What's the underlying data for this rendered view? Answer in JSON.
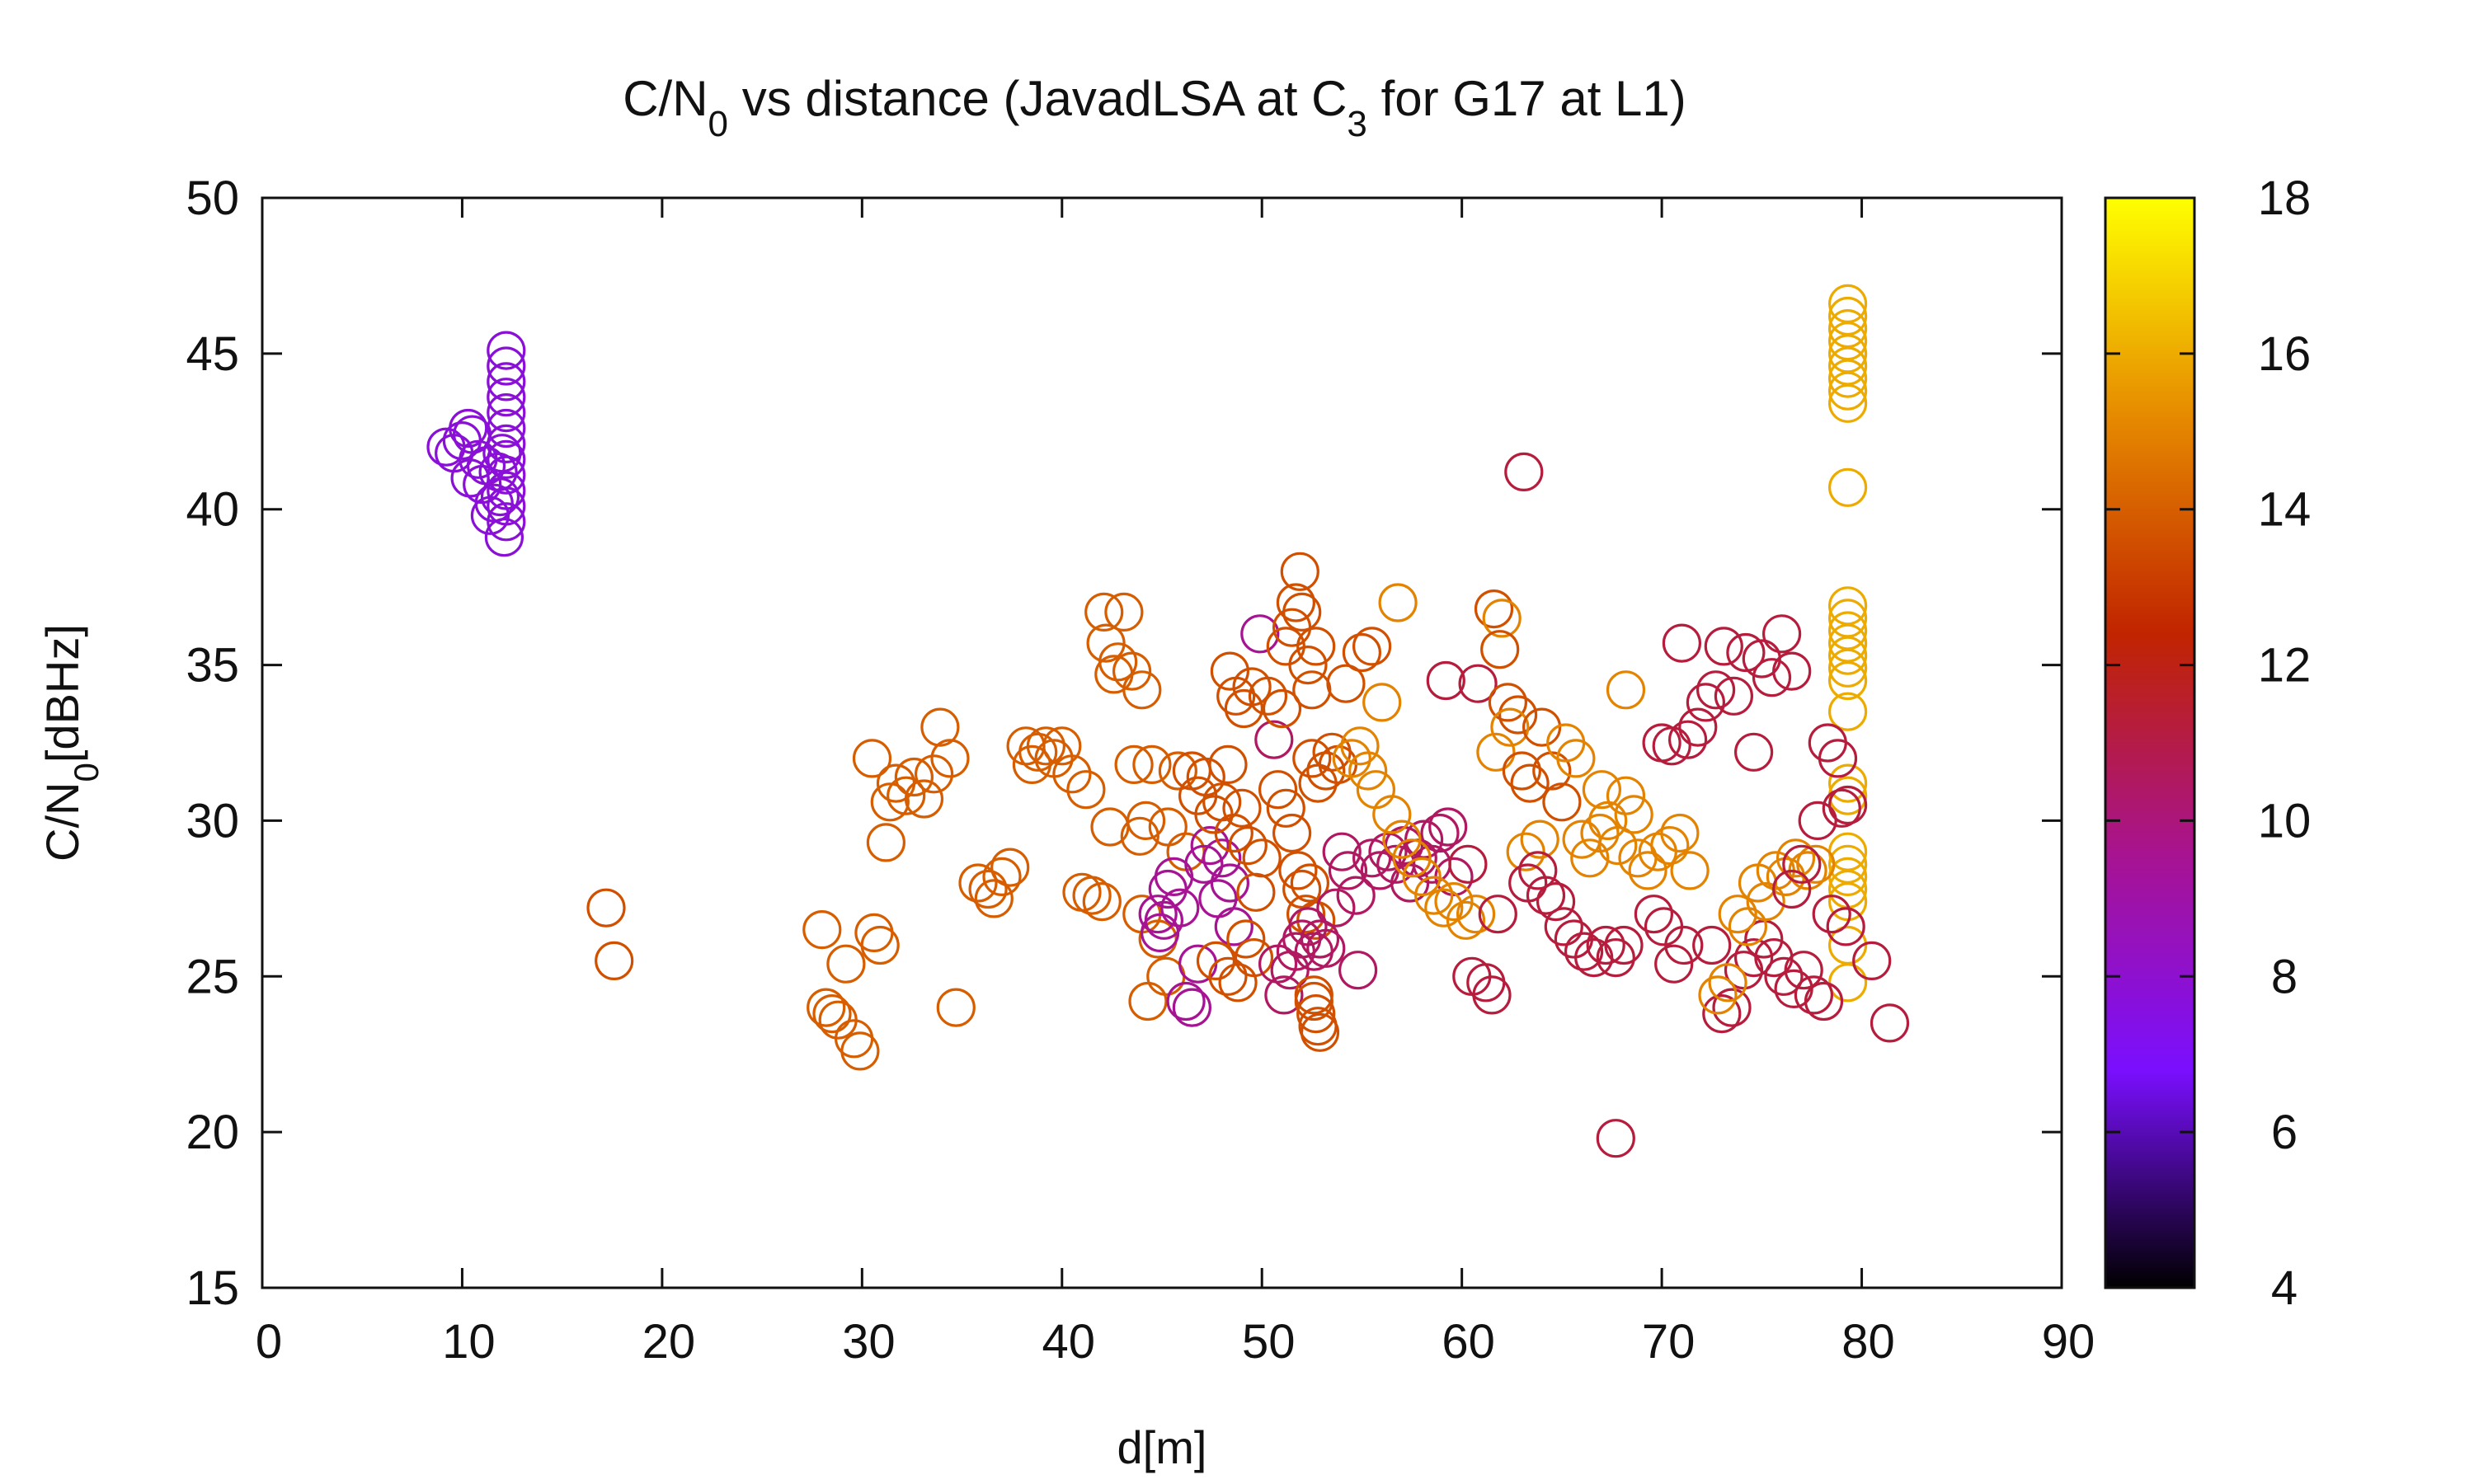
{
  "chart_data": {
    "type": "scatter",
    "title": {
      "base1": "C/N",
      "sub1": "0",
      "mid": " vs distance (JavadLSA at C",
      "sub2": "3",
      "tail": " for G17 at L1)"
    },
    "xlabel": "d[m]",
    "ylabel": {
      "base": "C/N",
      "sub": "0",
      "tail": "[dBHz]"
    },
    "xlim": [
      0,
      90
    ],
    "ylim": [
      15,
      50
    ],
    "xticks": [
      "0",
      "10",
      "20",
      "30",
      "40",
      "50",
      "60",
      "70",
      "80",
      "90"
    ],
    "yticks": [
      "15",
      "20",
      "25",
      "30",
      "35",
      "40",
      "45",
      "50"
    ],
    "colorbar": {
      "range": [
        4,
        18
      ],
      "ticks": [
        "4",
        "6",
        "8",
        "10",
        "12",
        "14",
        "16",
        "18"
      ],
      "palette": [
        "#000000",
        "#7a0fff",
        "#a8138f",
        "#c12400",
        "#e68a00",
        "#ffff00"
      ]
    },
    "marker": "open-circle",
    "points": [
      [
        9.2,
        42.0,
        7.8
      ],
      [
        9.6,
        41.8,
        7.8
      ],
      [
        10.0,
        42.2,
        7.8
      ],
      [
        10.3,
        42.6,
        7.8
      ],
      [
        10.5,
        42.4,
        7.8
      ],
      [
        10.8,
        41.6,
        7.8
      ],
      [
        10.4,
        41.0,
        7.8
      ],
      [
        11.0,
        40.8,
        7.8
      ],
      [
        11.2,
        41.4,
        7.8
      ],
      [
        11.6,
        40.2,
        7.8
      ],
      [
        11.4,
        39.8,
        7.8
      ],
      [
        11.8,
        41.2,
        7.8
      ],
      [
        12.2,
        45.1,
        7.8
      ],
      [
        12.2,
        44.6,
        7.8
      ],
      [
        12.2,
        44.1,
        7.8
      ],
      [
        12.2,
        43.6,
        7.8
      ],
      [
        12.2,
        43.1,
        7.8
      ],
      [
        12.2,
        42.6,
        7.8
      ],
      [
        12.2,
        42.1,
        7.8
      ],
      [
        12.2,
        41.6,
        7.8
      ],
      [
        12.2,
        41.1,
        7.8
      ],
      [
        12.2,
        40.6,
        7.8
      ],
      [
        12.2,
        40.1,
        7.8
      ],
      [
        12.2,
        39.6,
        7.8
      ],
      [
        12.1,
        39.1,
        7.8
      ],
      [
        11.9,
        40.4,
        7.8
      ],
      [
        12.0,
        41.8,
        7.8
      ],
      [
        79.3,
        46.6,
        16.0
      ],
      [
        79.3,
        46.2,
        16.0
      ],
      [
        79.3,
        45.8,
        16.0
      ],
      [
        79.3,
        45.4,
        16.0
      ],
      [
        79.3,
        45.0,
        16.0
      ],
      [
        79.3,
        44.6,
        16.0
      ],
      [
        79.3,
        44.2,
        16.0
      ],
      [
        79.3,
        43.8,
        16.0
      ],
      [
        79.3,
        43.4,
        16.0
      ],
      [
        79.3,
        40.7,
        16.0
      ],
      [
        79.3,
        36.9,
        16.0
      ],
      [
        79.3,
        36.5,
        16.0
      ],
      [
        79.3,
        36.1,
        16.0
      ],
      [
        79.3,
        35.7,
        16.0
      ],
      [
        79.3,
        35.3,
        16.0
      ],
      [
        79.3,
        34.9,
        16.0
      ],
      [
        79.3,
        34.5,
        16.0
      ],
      [
        79.3,
        33.5,
        16.0
      ],
      [
        79.3,
        31.2,
        16.0
      ],
      [
        79.3,
        30.8,
        16.0
      ],
      [
        79.3,
        29.0,
        16.0
      ],
      [
        79.3,
        28.6,
        16.0
      ],
      [
        79.3,
        28.2,
        16.0
      ],
      [
        79.3,
        27.8,
        16.0
      ],
      [
        79.3,
        27.4,
        16.0
      ],
      [
        79.3,
        26.0,
        16.0
      ],
      [
        79.3,
        24.8,
        16.0
      ],
      [
        79.3,
        30.5,
        11.2
      ],
      [
        79.2,
        26.6,
        11.2
      ],
      [
        17.2,
        27.2,
        13.6
      ],
      [
        17.6,
        25.5,
        13.6
      ],
      [
        28.0,
        26.5,
        14.0
      ],
      [
        28.2,
        24.0,
        14.0
      ],
      [
        28.5,
        23.8,
        14.0
      ],
      [
        28.8,
        23.6,
        14.0
      ],
      [
        29.2,
        25.4,
        14.0
      ],
      [
        29.6,
        23.0,
        14.0
      ],
      [
        29.9,
        22.6,
        14.0
      ],
      [
        30.5,
        32.0,
        14.0
      ],
      [
        30.6,
        26.4,
        14.0
      ],
      [
        30.9,
        26.0,
        14.0
      ],
      [
        31.2,
        29.3,
        14.0
      ],
      [
        31.4,
        30.6,
        14.0
      ],
      [
        31.7,
        31.2,
        14.0
      ],
      [
        32.2,
        30.8,
        14.0
      ],
      [
        32.6,
        31.4,
        14.0
      ],
      [
        33.1,
        30.7,
        14.0
      ],
      [
        33.6,
        31.5,
        14.0
      ],
      [
        33.9,
        33.0,
        14.0
      ],
      [
        34.4,
        32.0,
        14.0
      ],
      [
        34.7,
        24.0,
        14.0
      ],
      [
        35.8,
        28.0,
        14.0
      ],
      [
        36.3,
        27.8,
        14.0
      ],
      [
        36.6,
        27.5,
        14.0
      ],
      [
        37.0,
        28.2,
        14.0
      ],
      [
        37.4,
        28.5,
        14.0
      ],
      [
        38.2,
        32.4,
        14.0
      ],
      [
        38.5,
        31.8,
        14.0
      ],
      [
        38.8,
        32.2,
        14.0
      ],
      [
        39.2,
        32.4,
        14.0
      ],
      [
        39.6,
        32.0,
        14.0
      ],
      [
        40.0,
        32.4,
        14.0
      ],
      [
        40.5,
        31.5,
        14.0
      ],
      [
        41.2,
        31.0,
        14.0
      ],
      [
        41.0,
        27.7,
        14.0
      ],
      [
        41.5,
        27.6,
        14.0
      ],
      [
        42.0,
        27.4,
        14.0
      ],
      [
        42.1,
        36.7,
        14.0
      ],
      [
        42.2,
        35.7,
        14.0
      ],
      [
        42.6,
        34.7,
        14.0
      ],
      [
        42.8,
        35.1,
        14.0
      ],
      [
        43.1,
        36.7,
        14.0
      ],
      [
        43.5,
        34.8,
        14.0
      ],
      [
        44.0,
        34.2,
        14.0
      ],
      [
        42.4,
        29.8,
        14.0
      ],
      [
        43.6,
        31.8,
        14.0
      ],
      [
        43.9,
        29.5,
        14.0
      ],
      [
        44.2,
        30.0,
        14.0
      ],
      [
        44.5,
        31.8,
        14.0
      ],
      [
        44.0,
        27.0,
        14.0
      ],
      [
        44.3,
        24.2,
        14.0
      ],
      [
        44.8,
        26.2,
        14.0
      ],
      [
        45.2,
        25.0,
        14.0
      ],
      [
        45.3,
        29.8,
        14.0
      ],
      [
        45.8,
        31.6,
        14.0
      ],
      [
        46.2,
        29.0,
        14.0
      ],
      [
        44.8,
        27.0,
        9.5
      ],
      [
        44.9,
        26.4,
        9.5
      ],
      [
        45.1,
        26.8,
        9.5
      ],
      [
        45.3,
        27.8,
        9.5
      ],
      [
        45.6,
        28.2,
        9.5
      ],
      [
        45.9,
        27.2,
        9.5
      ],
      [
        46.2,
        24.2,
        9.5
      ],
      [
        46.5,
        24.0,
        9.5
      ],
      [
        46.8,
        25.4,
        9.5
      ],
      [
        47.1,
        28.6,
        9.5
      ],
      [
        47.4,
        29.2,
        9.5
      ],
      [
        47.8,
        27.5,
        9.5
      ],
      [
        48.0,
        28.8,
        9.5
      ],
      [
        48.4,
        28.0,
        9.5
      ],
      [
        48.6,
        26.6,
        9.5
      ],
      [
        46.5,
        31.6,
        13.6
      ],
      [
        46.8,
        30.8,
        13.6
      ],
      [
        47.2,
        31.4,
        13.6
      ],
      [
        47.6,
        30.2,
        13.6
      ],
      [
        48.0,
        30.6,
        13.6
      ],
      [
        48.3,
        31.8,
        13.6
      ],
      [
        48.6,
        29.6,
        13.6
      ],
      [
        49.0,
        30.4,
        13.6
      ],
      [
        49.3,
        29.2,
        13.6
      ],
      [
        49.7,
        27.7,
        13.6
      ],
      [
        50.0,
        28.8,
        13.6
      ],
      [
        47.7,
        25.5,
        13.6
      ],
      [
        48.3,
        25.0,
        13.6
      ],
      [
        48.8,
        24.8,
        13.6
      ],
      [
        49.2,
        26.2,
        13.6
      ],
      [
        49.6,
        25.6,
        13.6
      ],
      [
        48.4,
        34.8,
        13.6
      ],
      [
        48.7,
        34.0,
        13.6
      ],
      [
        49.1,
        33.6,
        13.6
      ],
      [
        49.5,
        34.3,
        13.6
      ],
      [
        49.9,
        36.0,
        9.5
      ],
      [
        50.3,
        34.0,
        13.6
      ],
      [
        50.6,
        32.6,
        10.5
      ],
      [
        51.0,
        33.6,
        13.6
      ],
      [
        50.8,
        31.0,
        13.6
      ],
      [
        51.2,
        30.4,
        13.6
      ],
      [
        51.5,
        29.6,
        13.6
      ],
      [
        51.8,
        28.4,
        13.6
      ],
      [
        52.0,
        27.8,
        13.6
      ],
      [
        52.2,
        27.0,
        13.6
      ],
      [
        52.4,
        28.0,
        13.6
      ],
      [
        52.7,
        26.8,
        13.6
      ],
      [
        50.8,
        25.4,
        10.5
      ],
      [
        51.1,
        24.4,
        10.5
      ],
      [
        51.4,
        25.2,
        10.5
      ],
      [
        51.7,
        25.8,
        10.5
      ],
      [
        52.0,
        26.2,
        10.5
      ],
      [
        52.3,
        26.6,
        10.5
      ],
      [
        52.6,
        25.8,
        10.5
      ],
      [
        52.9,
        26.2,
        10.5
      ],
      [
        53.2,
        25.9,
        10.5
      ],
      [
        51.2,
        35.6,
        13.6
      ],
      [
        51.5,
        36.2,
        13.6
      ],
      [
        51.7,
        37.0,
        13.6
      ],
      [
        51.9,
        38.0,
        13.6
      ],
      [
        52.0,
        36.7,
        13.6
      ],
      [
        52.3,
        35.0,
        13.6
      ],
      [
        52.5,
        34.2,
        13.6
      ],
      [
        52.7,
        35.6,
        13.6
      ],
      [
        52.5,
        32.0,
        13.6
      ],
      [
        52.8,
        31.2,
        13.6
      ],
      [
        53.2,
        31.6,
        13.6
      ],
      [
        53.5,
        32.2,
        13.6
      ],
      [
        53.8,
        31.8,
        13.6
      ],
      [
        54.2,
        34.4,
        13.6
      ],
      [
        54.5,
        32.0,
        15.0
      ],
      [
        54.9,
        32.4,
        15.0
      ],
      [
        55.3,
        31.6,
        15.0
      ],
      [
        55.7,
        31.0,
        15.0
      ],
      [
        52.6,
        24.2,
        13.6
      ],
      [
        52.7,
        23.8,
        13.6
      ],
      [
        52.8,
        23.4,
        13.6
      ],
      [
        52.9,
        23.2,
        13.6
      ],
      [
        52.6,
        24.4,
        13.6
      ],
      [
        54.0,
        29.0,
        10.5
      ],
      [
        54.3,
        28.4,
        10.5
      ],
      [
        54.7,
        27.6,
        10.5
      ],
      [
        53.7,
        27.2,
        10.5
      ],
      [
        54.8,
        25.2,
        10.5
      ],
      [
        55.0,
        35.4,
        13.6
      ],
      [
        55.5,
        35.6,
        13.6
      ],
      [
        55.5,
        28.8,
        10.5
      ],
      [
        55.9,
        28.4,
        10.5
      ],
      [
        56.3,
        29.0,
        10.5
      ],
      [
        56.7,
        28.6,
        10.5
      ],
      [
        57.1,
        29.2,
        10.5
      ],
      [
        57.4,
        28.0,
        10.5
      ],
      [
        57.8,
        28.8,
        10.5
      ],
      [
        58.1,
        29.4,
        10.5
      ],
      [
        58.5,
        28.6,
        10.5
      ],
      [
        58.9,
        29.6,
        10.5
      ],
      [
        59.3,
        29.8,
        10.5
      ],
      [
        59.6,
        28.2,
        10.5
      ],
      [
        56.0,
        33.8,
        15.0
      ],
      [
        56.8,
        37.0,
        15.0
      ],
      [
        56.5,
        30.2,
        15.0
      ],
      [
        57.0,
        29.4,
        15.0
      ],
      [
        57.5,
        28.8,
        15.0
      ],
      [
        58.0,
        28.2,
        15.0
      ],
      [
        58.6,
        27.6,
        15.0
      ],
      [
        59.1,
        27.2,
        15.0
      ],
      [
        59.6,
        27.4,
        15.0
      ],
      [
        60.2,
        26.8,
        15.0
      ],
      [
        60.7,
        27.0,
        15.0
      ],
      [
        59.2,
        34.5,
        11.2
      ],
      [
        60.8,
        34.4,
        11.2
      ],
      [
        60.3,
        28.6,
        11.2
      ],
      [
        60.5,
        25.0,
        11.2
      ],
      [
        61.2,
        24.8,
        11.2
      ],
      [
        61.5,
        24.4,
        11.2
      ],
      [
        61.8,
        27.0,
        11.2
      ],
      [
        61.6,
        36.8,
        13.6
      ],
      [
        62.0,
        36.5,
        15.0
      ],
      [
        61.9,
        35.5,
        13.6
      ],
      [
        62.3,
        33.8,
        13.6
      ],
      [
        62.8,
        33.4,
        13.6
      ],
      [
        61.7,
        32.2,
        15.0
      ],
      [
        62.4,
        33.0,
        15.0
      ],
      [
        63.0,
        31.6,
        13.6
      ],
      [
        63.4,
        31.2,
        13.6
      ],
      [
        63.2,
        29.0,
        15.0
      ],
      [
        63.9,
        29.4,
        15.0
      ],
      [
        63.1,
        41.2,
        11.2
      ],
      [
        63.3,
        28.0,
        11.2
      ],
      [
        63.8,
        28.4,
        11.2
      ],
      [
        64.2,
        27.6,
        11.2
      ],
      [
        64.7,
        27.4,
        11.2
      ],
      [
        65.1,
        26.6,
        11.2
      ],
      [
        65.6,
        26.2,
        11.2
      ],
      [
        66.1,
        25.8,
        11.2
      ],
      [
        66.6,
        25.6,
        11.2
      ],
      [
        67.2,
        26.0,
        11.2
      ],
      [
        67.7,
        25.6,
        11.2
      ],
      [
        68.1,
        26.0,
        11.2
      ],
      [
        64.0,
        33.0,
        13.6
      ],
      [
        64.5,
        31.6,
        13.6
      ],
      [
        65.0,
        30.6,
        13.6
      ],
      [
        65.2,
        32.5,
        15.0
      ],
      [
        65.7,
        32.0,
        15.0
      ],
      [
        66.0,
        29.4,
        15.0
      ],
      [
        66.4,
        28.8,
        15.0
      ],
      [
        66.9,
        29.6,
        15.0
      ],
      [
        67.3,
        30.0,
        15.0
      ],
      [
        67.8,
        29.2,
        15.0
      ],
      [
        68.2,
        30.8,
        15.0
      ],
      [
        68.6,
        30.2,
        15.0
      ],
      [
        67.0,
        31.0,
        15.0
      ],
      [
        68.2,
        34.2,
        15.0
      ],
      [
        67.7,
        19.8,
        11.2
      ],
      [
        68.8,
        28.8,
        15.0
      ],
      [
        69.3,
        28.4,
        15.0
      ],
      [
        69.8,
        29.0,
        15.0
      ],
      [
        70.4,
        29.2,
        15.0
      ],
      [
        70.9,
        29.6,
        15.0
      ],
      [
        71.4,
        28.4,
        15.0
      ],
      [
        69.6,
        27.0,
        11.2
      ],
      [
        70.1,
        26.6,
        11.2
      ],
      [
        70.6,
        25.4,
        11.2
      ],
      [
        71.1,
        26.0,
        11.2
      ],
      [
        70.0,
        32.5,
        11.2
      ],
      [
        70.5,
        32.4,
        11.2
      ],
      [
        71.0,
        35.7,
        11.2
      ],
      [
        71.3,
        32.6,
        11.2
      ],
      [
        71.8,
        33.0,
        11.2
      ],
      [
        72.2,
        33.8,
        11.2
      ],
      [
        72.7,
        34.2,
        11.2
      ],
      [
        73.1,
        35.6,
        11.2
      ],
      [
        73.6,
        34.0,
        11.2
      ],
      [
        74.2,
        35.4,
        11.2
      ],
      [
        74.6,
        32.2,
        11.2
      ],
      [
        75.0,
        35.2,
        11.2
      ],
      [
        75.5,
        34.6,
        11.2
      ],
      [
        76.0,
        36.0,
        11.2
      ],
      [
        76.5,
        34.8,
        11.2
      ],
      [
        72.5,
        26.0,
        11.2
      ],
      [
        73.0,
        23.8,
        11.2
      ],
      [
        73.5,
        24.0,
        11.2
      ],
      [
        74.1,
        25.2,
        11.2
      ],
      [
        74.6,
        25.6,
        11.2
      ],
      [
        75.1,
        26.2,
        11.2
      ],
      [
        75.6,
        25.6,
        11.2
      ],
      [
        76.1,
        25.0,
        11.2
      ],
      [
        76.6,
        24.6,
        11.2
      ],
      [
        77.1,
        25.2,
        11.2
      ],
      [
        77.6,
        24.4,
        11.2
      ],
      [
        78.1,
        24.2,
        11.2
      ],
      [
        72.8,
        24.4,
        15.0
      ],
      [
        73.3,
        24.8,
        15.0
      ],
      [
        73.8,
        27.0,
        15.0
      ],
      [
        74.3,
        26.6,
        15.0
      ],
      [
        74.8,
        28.0,
        15.0
      ],
      [
        75.2,
        27.4,
        15.0
      ],
      [
        75.7,
        28.4,
        15.0
      ],
      [
        76.2,
        28.2,
        15.0
      ],
      [
        76.7,
        28.8,
        15.0
      ],
      [
        77.3,
        28.4,
        15.0
      ],
      [
        77.7,
        28.6,
        15.0
      ],
      [
        76.5,
        27.8,
        11.2
      ],
      [
        77.0,
        28.6,
        11.2
      ],
      [
        77.8,
        30.0,
        11.2
      ],
      [
        78.3,
        32.5,
        11.2
      ],
      [
        78.8,
        32.0,
        11.2
      ],
      [
        79.0,
        30.4,
        11.2
      ],
      [
        78.5,
        27.0,
        11.2
      ],
      [
        80.5,
        25.5,
        11.2
      ],
      [
        81.4,
        23.5,
        11.2
      ]
    ]
  }
}
